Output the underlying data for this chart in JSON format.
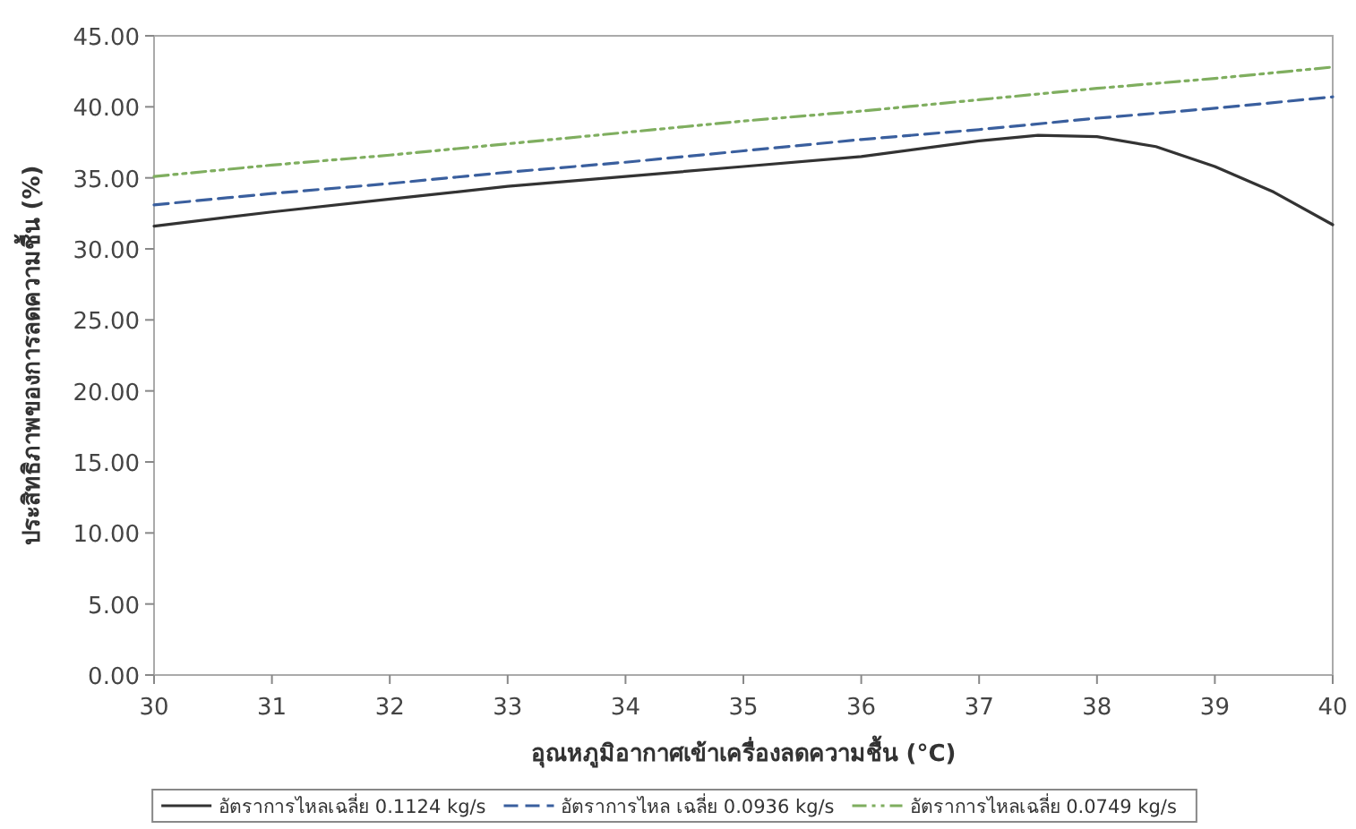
{
  "chart_data": {
    "type": "line",
    "xlabel": "อุณหภูมิอากาศเข้าเครื่องลดความชื้น (°C)",
    "ylabel": "ประสิทธิภาพของการลดความชื้น (%)",
    "xlim": [
      30,
      40
    ],
    "xticks": [
      30,
      31,
      32,
      33,
      34,
      35,
      36,
      37,
      38,
      39,
      40
    ],
    "ylim": [
      0,
      45
    ],
    "yticks": [
      {
        "value": 0,
        "label": "0.00"
      },
      {
        "value": 5,
        "label": "5.00"
      },
      {
        "value": 10,
        "label": "10.00"
      },
      {
        "value": 15,
        "label": "15.00"
      },
      {
        "value": 20,
        "label": "20.00"
      },
      {
        "value": 25,
        "label": "25.00"
      },
      {
        "value": 30,
        "label": "30.00"
      },
      {
        "value": 35,
        "label": "35.00"
      },
      {
        "value": 40,
        "label": "40.00"
      },
      {
        "value": 45,
        "label": "45.00"
      }
    ],
    "grid": false,
    "legend": "bottom",
    "marker": "none",
    "series": [
      {
        "name": "อัตราการไหลเฉลี่ย 0.1124 kg/s",
        "color": "#333333",
        "line_style": "solid",
        "x": [
          30,
          31,
          32,
          33,
          34,
          35,
          36,
          37,
          37.5,
          38,
          38.5,
          39,
          39.5,
          40
        ],
        "values": [
          31.6,
          32.6,
          33.5,
          34.4,
          35.1,
          35.8,
          36.5,
          37.6,
          38.0,
          37.9,
          37.2,
          35.8,
          34.0,
          31.7
        ]
      },
      {
        "name": "อัตราการไหล เฉลี่ย 0.0936 kg/s",
        "color": "#3a5f9e",
        "line_style": "dashed",
        "x": [
          30,
          31,
          32,
          33,
          34,
          35,
          36,
          37,
          38,
          39,
          40
        ],
        "values": [
          33.1,
          33.9,
          34.6,
          35.4,
          36.1,
          36.9,
          37.7,
          38.4,
          39.2,
          39.9,
          40.7
        ]
      },
      {
        "name": "อัตราการไหลเฉลี่ย 0.0749 kg/s",
        "color": "#7fae5f",
        "line_style": "dashdot",
        "x": [
          30,
          31,
          32,
          33,
          34,
          35,
          36,
          37,
          38,
          39,
          40
        ],
        "values": [
          35.1,
          35.9,
          36.6,
          37.4,
          38.2,
          39.0,
          39.7,
          40.5,
          41.3,
          42.0,
          42.8
        ]
      }
    ]
  }
}
